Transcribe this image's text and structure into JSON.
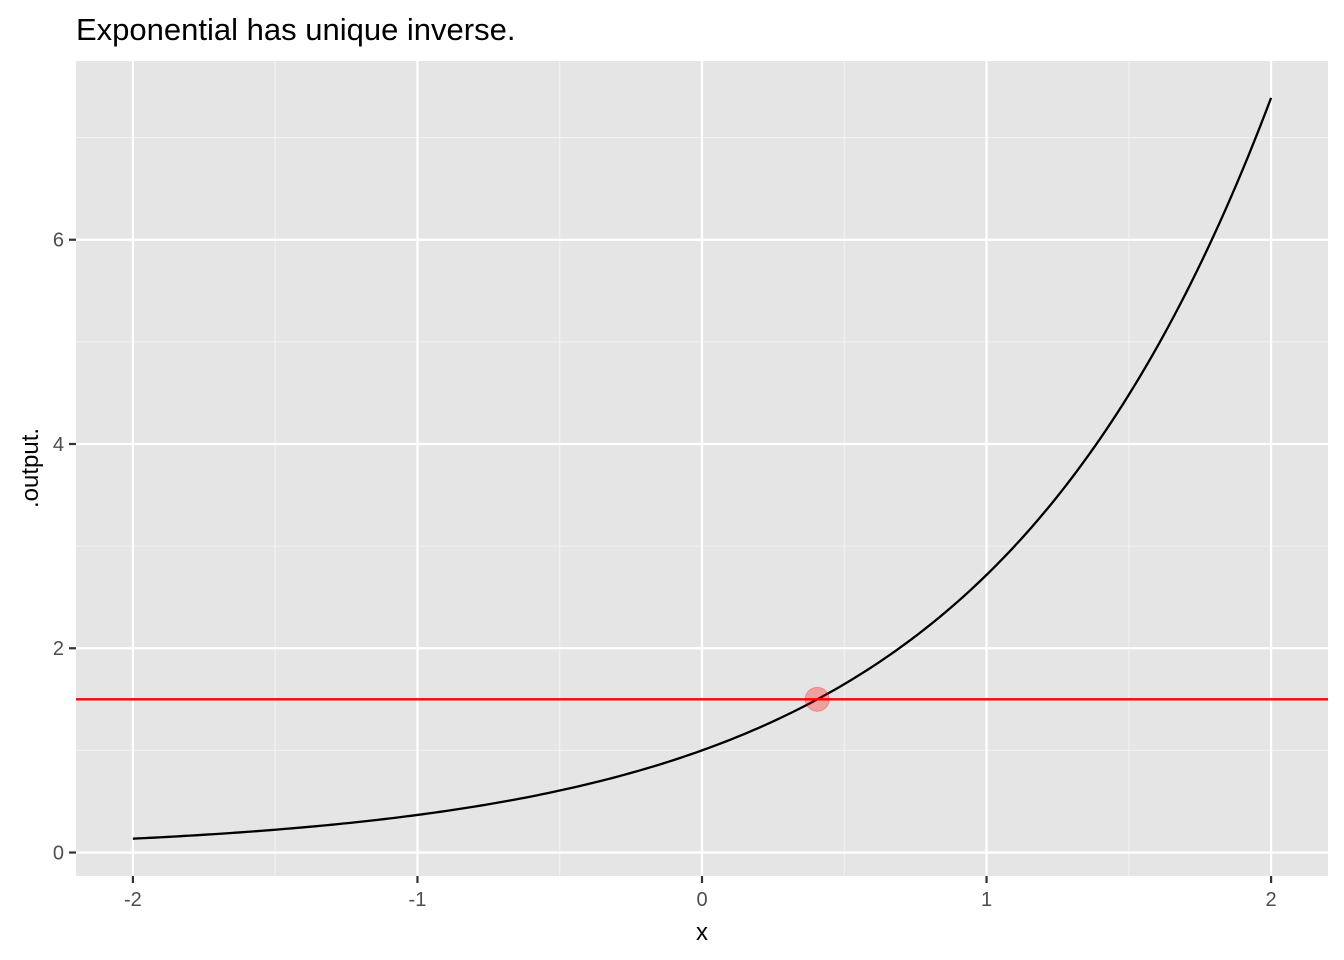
{
  "chart_data": {
    "type": "line",
    "title": "Exponential has unique inverse.",
    "xlabel": "x",
    "ylabel": ".output.",
    "xlim": [
      -2.2,
      2.2
    ],
    "ylim": [
      -0.23,
      7.75
    ],
    "x_ticks": [
      {
        "value": -2,
        "label": "-2"
      },
      {
        "value": -1,
        "label": "-1"
      },
      {
        "value": 0,
        "label": "0"
      },
      {
        "value": 1,
        "label": "1"
      },
      {
        "value": 2,
        "label": "2"
      }
    ],
    "y_ticks": [
      {
        "value": 0,
        "label": "0"
      },
      {
        "value": 2,
        "label": "2"
      },
      {
        "value": 4,
        "label": "4"
      },
      {
        "value": 6,
        "label": "6"
      }
    ],
    "x_minor": [
      -1.5,
      -0.5,
      0.5,
      1.5
    ],
    "y_minor": [
      1,
      3,
      5,
      7
    ],
    "grid": true,
    "series": [
      {
        "function": "exp(x)",
        "x_range": [
          -2,
          2
        ],
        "color": "#000000"
      }
    ],
    "hline": {
      "y": 1.5,
      "color": "#ff0000"
    },
    "point": {
      "x": 0.405,
      "y": 1.5,
      "color": "#ff0000",
      "alpha": 0.3
    },
    "colors": {
      "panel": "#e5e5e5",
      "grid_major": "#ffffff",
      "grid_minor": "#f2f2f2",
      "tick_mark": "#333333"
    }
  }
}
